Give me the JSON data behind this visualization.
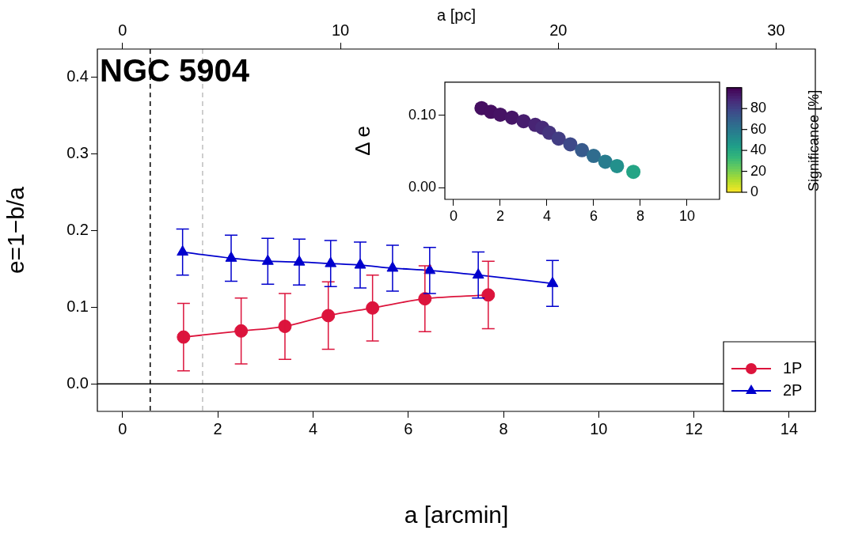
{
  "chart_data": [
    {
      "type": "line",
      "title": "NGC 5904",
      "xlabel": "a [arcmin]",
      "ylabel": "e=1−b/a",
      "x2label": "a [pc]",
      "xlim": [
        -0.53,
        14.55
      ],
      "xticks": [
        0,
        2,
        4,
        6,
        8,
        10,
        12,
        14
      ],
      "x2lim": [
        -1.16,
        31.8
      ],
      "x2ticks": [
        0,
        10,
        20,
        30
      ],
      "ylim": [
        -0.036,
        0.437
      ],
      "yticks": [
        {
          "value": 0,
          "label": "0.0"
        },
        {
          "value": 0.1,
          "label": "0.1"
        },
        {
          "value": 0.2,
          "label": "0.2"
        },
        {
          "value": 0.3,
          "label": "0.3"
        },
        {
          "value": 0.4,
          "label": "0.4"
        }
      ],
      "grid": false,
      "legend": "bottom right",
      "ref_lines": [
        {
          "axis": "x",
          "value": 0.58,
          "color": "#000000",
          "line_style": "dashed"
        },
        {
          "axis": "x",
          "value": 1.68,
          "color": "#bebebe",
          "line_style": "dashed"
        },
        {
          "axis": "y",
          "value": 0,
          "color": "#000000",
          "line_style": "solid"
        }
      ],
      "series": [
        {
          "name": "1P",
          "color": "#dc143c",
          "marker": "circle",
          "x": [
            1.28,
            2.49,
            3.41,
            4.32,
            5.25,
            6.35,
            7.68
          ],
          "values": [
            0.061,
            0.069,
            0.075,
            0.089,
            0.099,
            0.111,
            0.116
          ],
          "errors": [
            0.044,
            0.043,
            0.043,
            0.044,
            0.043,
            0.043,
            0.044
          ]
        },
        {
          "name": "2P",
          "color": "#0000cd",
          "marker": "triangle",
          "x": [
            1.26,
            2.28,
            3.05,
            3.71,
            4.37,
            4.99,
            5.67,
            6.45,
            7.47,
            9.03
          ],
          "values": [
            0.172,
            0.164,
            0.16,
            0.159,
            0.157,
            0.155,
            0.151,
            0.148,
            0.142,
            0.131
          ],
          "errors": [
            0.03,
            0.03,
            0.03,
            0.03,
            0.03,
            0.03,
            0.03,
            0.03,
            0.03,
            0.03
          ]
        }
      ]
    },
    {
      "type": "scatter",
      "ylabel": "Δ e",
      "clabel": "Significance [%]",
      "marker": "circle",
      "xlim": [
        -0.37,
        11.39
      ],
      "xticks": [
        0,
        2,
        4,
        6,
        8,
        10
      ],
      "ylim": [
        -0.016,
        0.146
      ],
      "yticks": [
        {
          "value": 0,
          "label": "0.00"
        },
        {
          "value": 0.1,
          "label": "0.10"
        }
      ],
      "clim": [
        0,
        100
      ],
      "cticks": [
        0,
        20,
        40,
        60,
        80
      ],
      "grid": false,
      "x": [
        1.2,
        1.6,
        2.0,
        2.5,
        3.0,
        3.5,
        3.8,
        4.1,
        4.5,
        5.0,
        5.5,
        6.0,
        6.5,
        7.0,
        7.7
      ],
      "values": [
        0.11,
        0.105,
        0.101,
        0.097,
        0.092,
        0.087,
        0.083,
        0.076,
        0.068,
        0.06,
        0.052,
        0.044,
        0.036,
        0.03,
        0.022
      ],
      "cvalues": [
        96,
        96,
        95,
        94,
        92,
        90,
        88,
        85,
        82,
        78,
        72,
        65,
        58,
        50,
        42
      ]
    }
  ]
}
